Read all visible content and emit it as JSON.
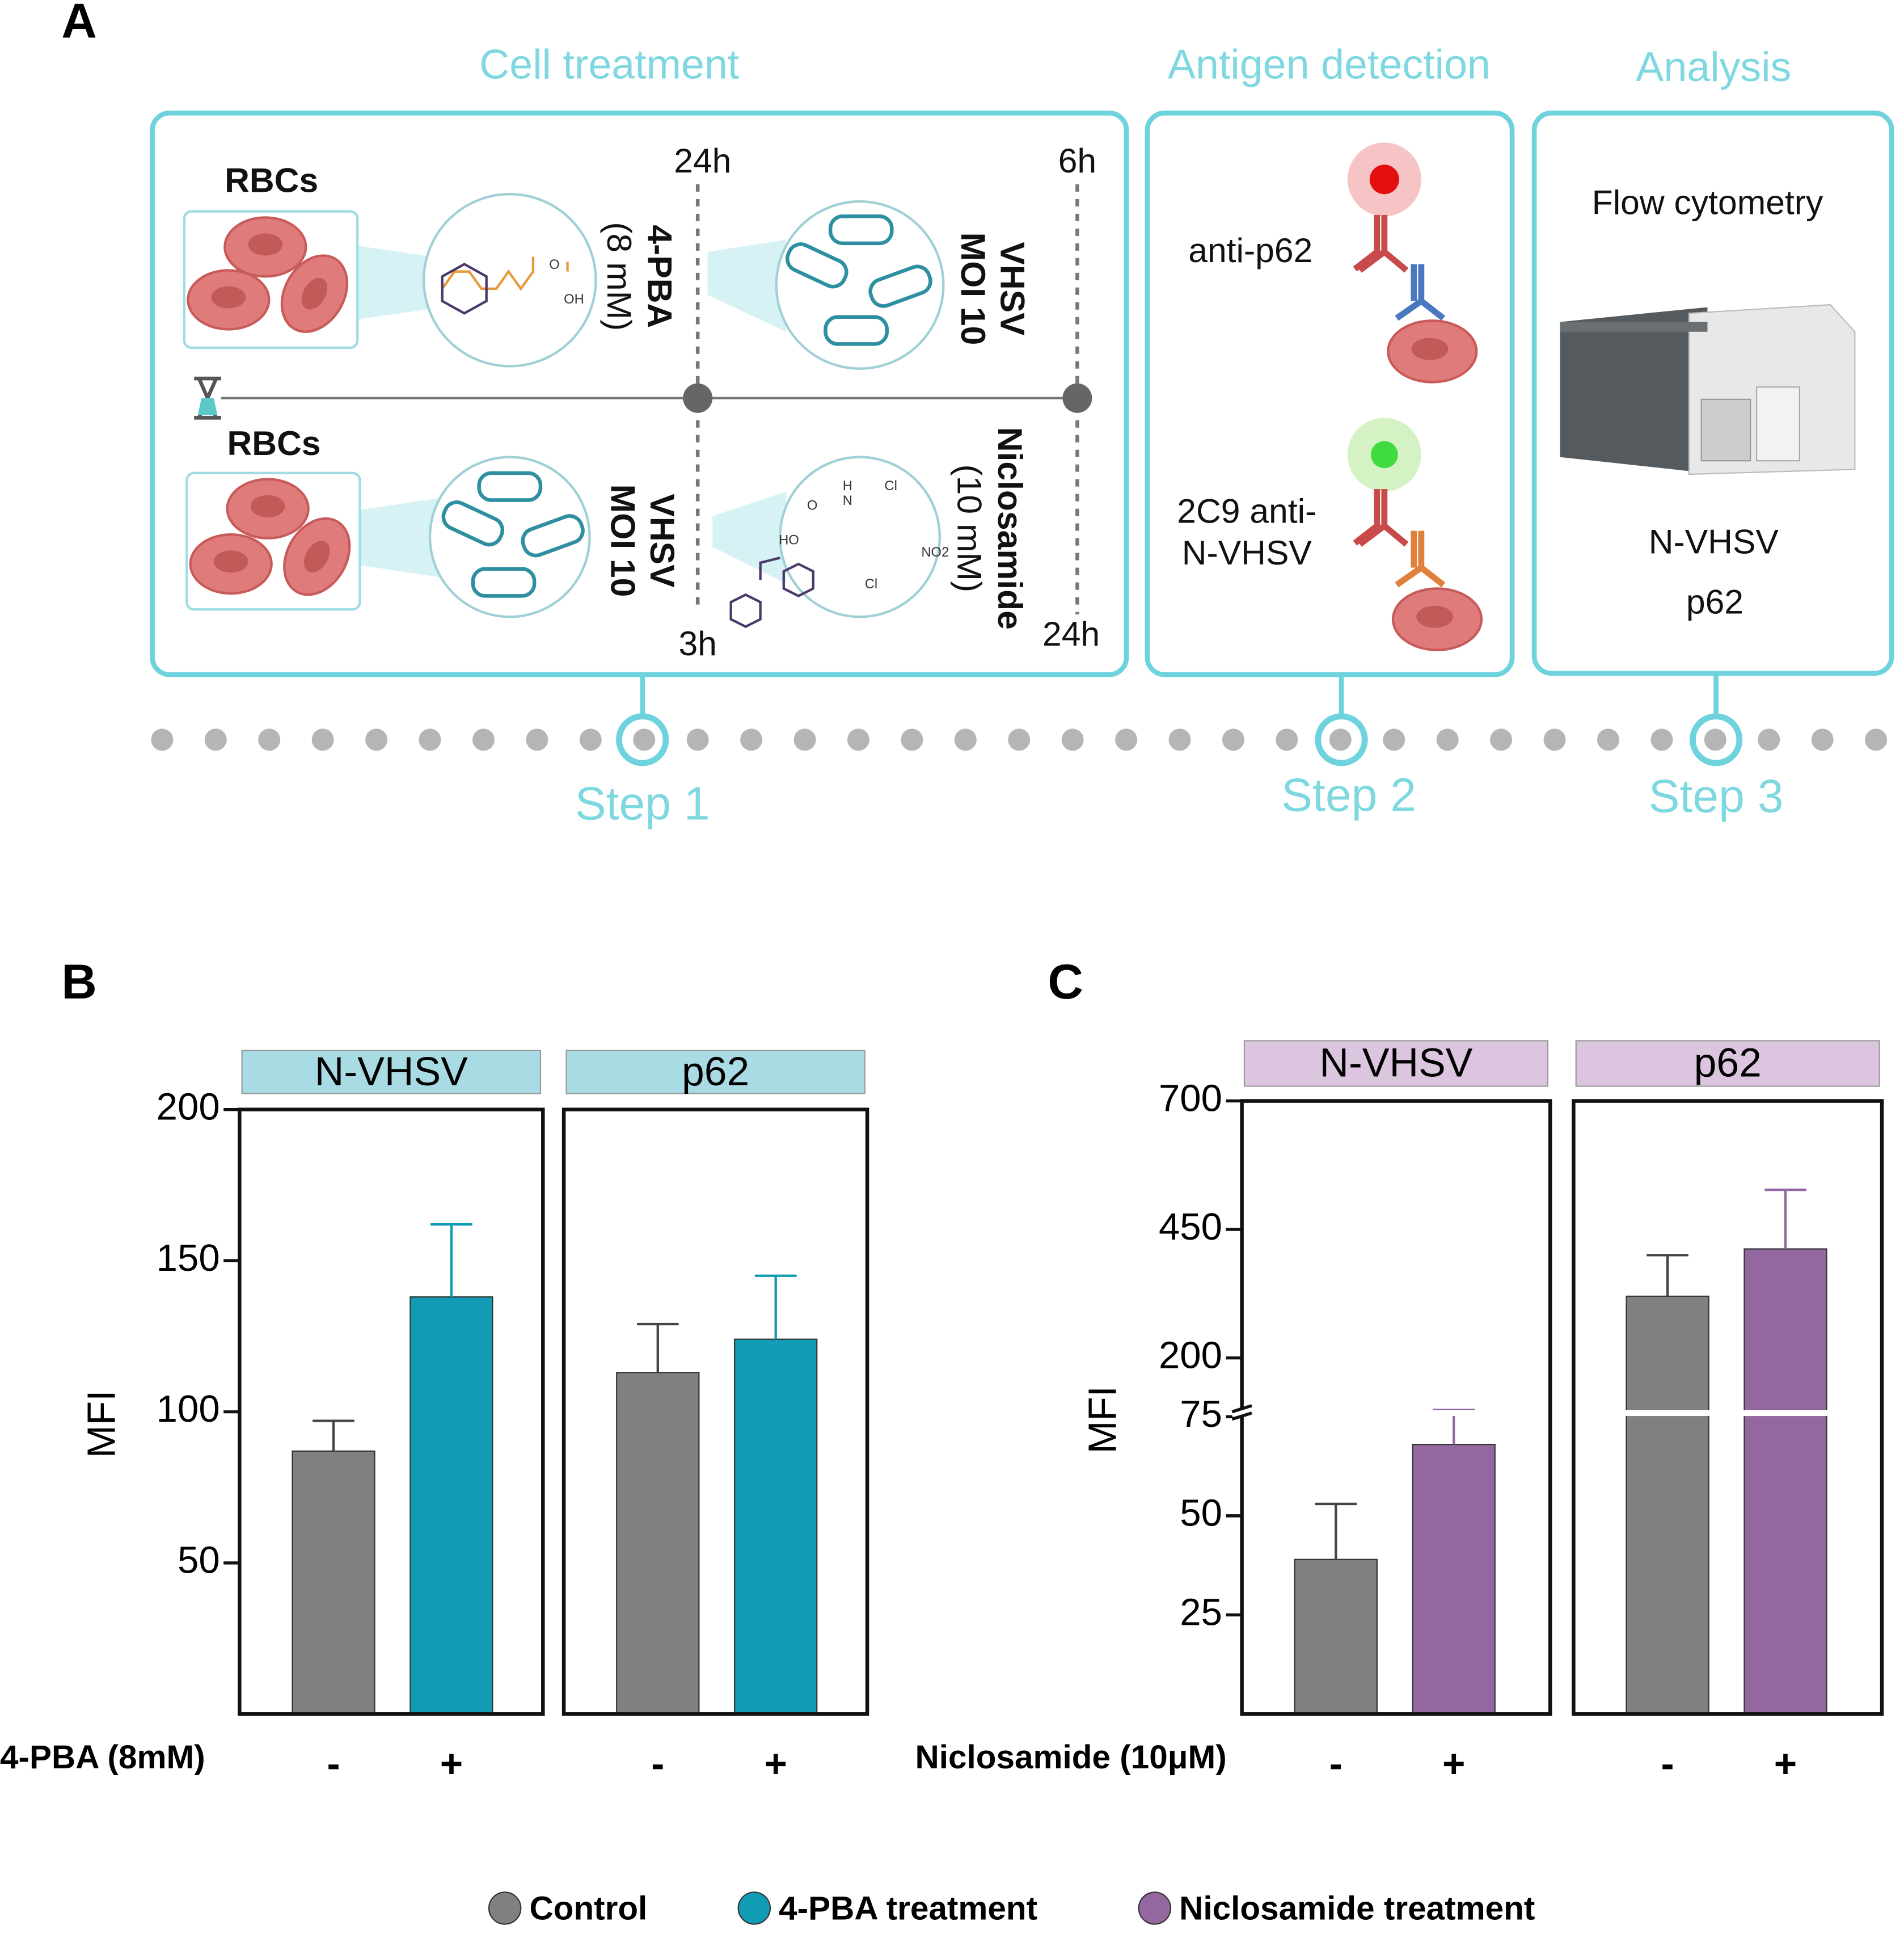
{
  "diagram": {
    "label": "A",
    "sections": [
      "Cell treatment",
      "Antigen detection",
      "Analysis"
    ],
    "rbcs": [
      "RBCs",
      "RBCs"
    ],
    "times": [
      "24h",
      "6h",
      "3h",
      "24h"
    ],
    "drugs": [
      {
        "name": "4-PBA",
        "dose": "(8 mM)"
      },
      {
        "name": "Niclosamide",
        "dose": "(10 mM)"
      }
    ],
    "virus": [
      {
        "name": "VHSV",
        "dose": "MOI 10"
      },
      {
        "name": "VHSV",
        "dose": "MOI 10"
      }
    ],
    "chem_labels": [
      "O",
      "OH",
      "HO",
      "O",
      "N",
      "H",
      "Cl",
      "Cl",
      "NO2"
    ],
    "antibodies": [
      "anti-p62",
      "2C9 anti-",
      "N-VHSV"
    ],
    "analysis": {
      "method": "Flow cytometry",
      "targets": [
        "N-VHSV",
        "p62"
      ]
    },
    "steps": [
      "Step 1",
      "Step 2",
      "Step 3"
    ]
  },
  "chart_data": [
    {
      "type": "bar",
      "label": "B",
      "ylabel": "MFI",
      "xlabel": "4-PBA (8mM)",
      "facets": [
        "N-VHSV",
        "p62"
      ],
      "facet_color": "#a8dbe4",
      "categories": [
        "-",
        "+"
      ],
      "series": [
        {
          "name": "Control",
          "color": "#808080",
          "values": [
            87,
            113
          ],
          "errors": [
            10,
            16
          ]
        },
        {
          "name": "4-PBA treatment",
          "color": "#119bb5",
          "values": [
            138,
            124
          ],
          "errors": [
            24,
            21
          ]
        }
      ],
      "ylim": [
        0,
        200
      ],
      "yticks": [
        50,
        100,
        150,
        200
      ]
    },
    {
      "type": "bar",
      "label": "C",
      "ylabel": "MFI",
      "xlabel": "Niclosamide (10μM)",
      "facets": [
        "N-VHSV",
        "p62"
      ],
      "facet_color": "#dcc6df",
      "categories": [
        "-",
        "+"
      ],
      "series": [
        {
          "name": "Control",
          "color": "#808080",
          "values": [
            39,
            320
          ],
          "errors": [
            14,
            80
          ]
        },
        {
          "name": "Niclosamide treatment",
          "color": "#93679f",
          "values": [
            68,
            412
          ],
          "errors": [
            30,
            115
          ]
        }
      ],
      "ylim": [
        0,
        700
      ],
      "ybreak": [
        75,
        100
      ],
      "yticks": [
        25,
        50,
        75,
        200,
        450,
        700
      ]
    }
  ]
}
